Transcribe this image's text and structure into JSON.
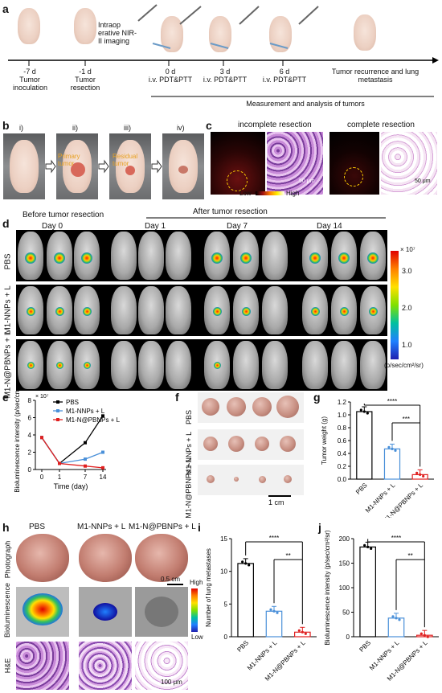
{
  "panels": {
    "a": "a",
    "b": "b",
    "c": "c",
    "d": "d",
    "e": "e",
    "f": "f",
    "g": "g",
    "h": "h",
    "i": "i",
    "j": "j"
  },
  "a": {
    "timeline": [
      {
        "day": "-7 d",
        "text": "Tumor inoculation"
      },
      {
        "day": "-1 d",
        "text": "Tumor resection"
      },
      {
        "day": "0 d",
        "text": "i.v. PDT&PTT"
      },
      {
        "day": "3 d",
        "text": "i.v. PDT&PTT"
      },
      {
        "day": "6 d",
        "text": "i.v. PDT&PTT"
      },
      {
        "day": "",
        "text": "Tumor recurrence and lung metastasis"
      }
    ],
    "imaging": "Intraop erative NIR-II imaging",
    "measure": "Measurement and analysis of tumors"
  },
  "b": {
    "steps": [
      "i)",
      "ii)",
      "iii)",
      "iv)"
    ],
    "primary": "Primary tumor",
    "residual": "Residual tumor"
  },
  "c": {
    "incomplete": "incomplete resection",
    "complete": "complete resection",
    "scale": "50 μm",
    "low": "Low",
    "high": "High"
  },
  "d": {
    "before": "Before tumor resection",
    "after": "After tumor resection",
    "days": [
      "Day 0",
      "Day 1",
      "Day 7",
      "Day 14"
    ],
    "rows": [
      "PBS",
      "M1-NNPs + L",
      "M1-N@PBNPs + L"
    ],
    "colorbar_exp": "× 10⁷",
    "colorbar_ticks": [
      "3.0",
      "2.0",
      "1.0"
    ],
    "colorbar_unit": "(p/sec/cm²/sr)"
  },
  "chart_data": [
    {
      "panel": "e",
      "type": "line",
      "x": [
        0,
        1,
        7,
        14
      ],
      "series": [
        {
          "name": "PBS",
          "values": [
            3.7,
            0.7,
            3.1,
            6.2
          ],
          "color": "#000000"
        },
        {
          "name": "M1-NNPs + L",
          "values": [
            3.7,
            0.7,
            1.2,
            2.0
          ],
          "color": "#4a90d9"
        },
        {
          "name": "M1-N@PBNPs + L",
          "values": [
            3.7,
            0.7,
            0.4,
            0.2
          ],
          "color": "#e02020"
        }
      ],
      "xlabel": "Time (day)",
      "ylabel": "Bioluminescence intensity (p/sec/cm²/sr)",
      "yexp": "× 10⁷",
      "ylim": [
        0,
        8
      ],
      "yticks": [
        "0",
        "2",
        "4",
        "6",
        "8"
      ],
      "xticks": [
        "0",
        "1",
        "7",
        "14"
      ]
    },
    {
      "panel": "g",
      "type": "bar",
      "categories": [
        "PBS",
        "M1-NNPs + L",
        "M1-N@PBNPs + L"
      ],
      "values": [
        1.05,
        0.47,
        0.07
      ],
      "colors": [
        "#000000",
        "#4a90d9",
        "#e02020"
      ],
      "ylabel": "Tumor weight (g)",
      "ylim": [
        0,
        1.2
      ],
      "yticks": [
        "0.0",
        "0.2",
        "0.4",
        "0.6",
        "0.8",
        "1.0",
        "1.2"
      ],
      "sig": [
        "****",
        "***"
      ]
    },
    {
      "panel": "i",
      "type": "bar",
      "categories": [
        "PBS",
        "M1-NNPs + L",
        "M1-N@PBNPs + L"
      ],
      "values": [
        11.2,
        3.9,
        0.7
      ],
      "colors": [
        "#000000",
        "#4a90d9",
        "#e02020"
      ],
      "ylabel": "Number of lung metastases",
      "ylim": [
        0,
        15
      ],
      "yticks": [
        "0",
        "5",
        "10",
        "15"
      ],
      "sig": [
        "****",
        "**"
      ]
    },
    {
      "panel": "j",
      "type": "bar",
      "categories": [
        "PBS",
        "M1-NNPs + L",
        "M1-N@PBNPs + L"
      ],
      "values": [
        183,
        38,
        3
      ],
      "colors": [
        "#000000",
        "#4a90d9",
        "#e02020"
      ],
      "ylabel": "Bioluminescence intensity (p/sec/cm²/sr)",
      "ylim": [
        0,
        200
      ],
      "yticks": [
        "0",
        "50",
        "100",
        "150",
        "200"
      ],
      "sig": [
        "****",
        "**"
      ]
    }
  ],
  "f": {
    "rows": [
      "PBS",
      "M1-NNPs + L",
      "M1-N@PBNPs + L"
    ],
    "scale": "1 cm"
  },
  "h": {
    "cols": [
      "PBS",
      "M1-NNPs + L",
      "M1-N@PBNPs + L"
    ],
    "rows": [
      "Photograph",
      "Bioluminescence",
      "H&E"
    ],
    "scale1": "0.5 cm",
    "scale2": "100 μm",
    "high": "High",
    "low": "Low"
  }
}
